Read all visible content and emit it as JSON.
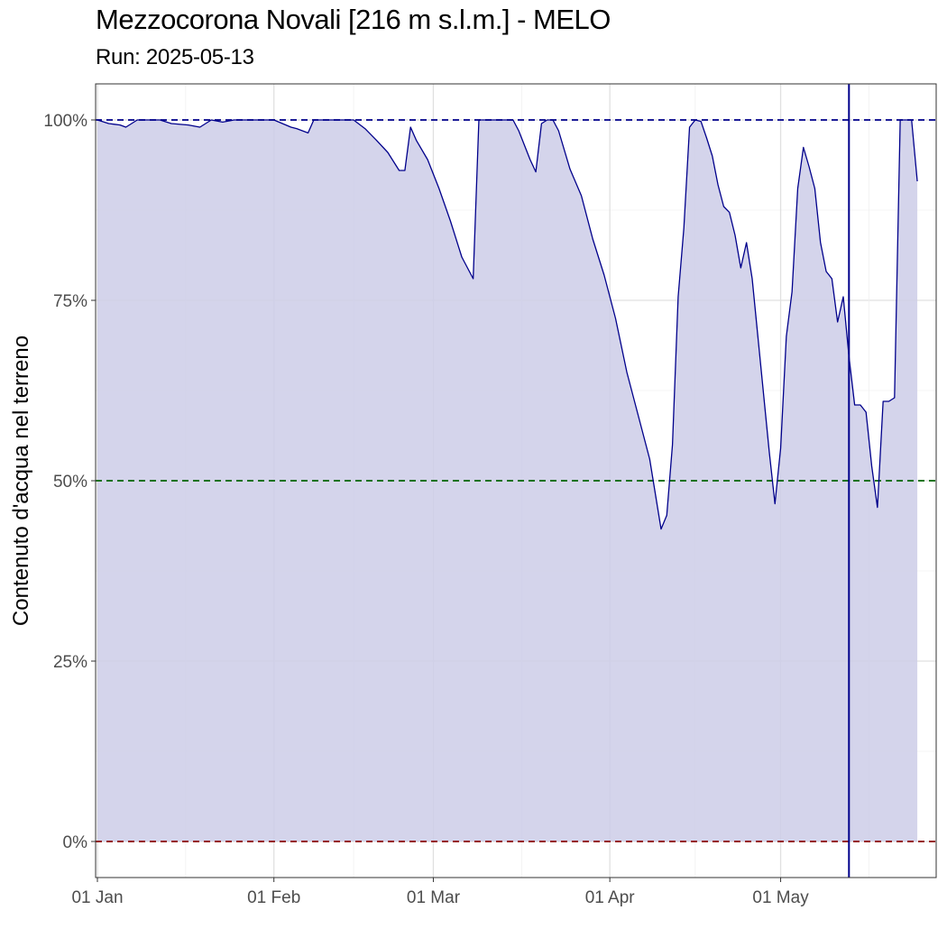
{
  "chart_data": {
    "type": "area",
    "title": "Mezzocorona Novali [216 m s.l.m.] - MELO",
    "subtitle": "Run: 2025-05-13",
    "xlabel": "",
    "ylabel": "Contenuto d'acqua nel terreno",
    "xlim": [
      "2025-01-01",
      "2025-05-28"
    ],
    "ylim": [
      -0.05,
      1.05
    ],
    "x_ticks": [
      {
        "date": "2025-01-01",
        "label": "01 Jan"
      },
      {
        "date": "2025-02-01",
        "label": "01 Feb"
      },
      {
        "date": "2025-03-01",
        "label": "01 Mar"
      },
      {
        "date": "2025-04-01",
        "label": "01 Apr"
      },
      {
        "date": "2025-05-01",
        "label": "01 May"
      }
    ],
    "y_ticks": [
      {
        "value": 0,
        "label": "0%"
      },
      {
        "value": 0.25,
        "label": "25%"
      },
      {
        "value": 0.5,
        "label": "50%"
      },
      {
        "value": 0.75,
        "label": "75%"
      },
      {
        "value": 1,
        "label": "100%"
      }
    ],
    "reference_lines": [
      {
        "value": 1.0,
        "color": "#00008b",
        "style": "dashed"
      },
      {
        "value": 0.5,
        "color": "#006400",
        "style": "dashed"
      },
      {
        "value": 0.0,
        "color": "#8b0000",
        "style": "dashed"
      }
    ],
    "run_date_line": {
      "date": "2025-05-13",
      "color": "#00008b"
    },
    "grid": true,
    "colors": {
      "line": "#00008b",
      "fill": "#cccce8"
    },
    "series": [
      {
        "points": [
          [
            "2025-01-01",
            1.0
          ],
          [
            "2025-01-03",
            0.995
          ],
          [
            "2025-01-05",
            0.993
          ],
          [
            "2025-01-06",
            0.99
          ],
          [
            "2025-01-08",
            1.0
          ],
          [
            "2025-01-12",
            1.0
          ],
          [
            "2025-01-14",
            0.995
          ],
          [
            "2025-01-17",
            0.993
          ],
          [
            "2025-01-19",
            0.99
          ],
          [
            "2025-01-21",
            1.0
          ],
          [
            "2025-01-23",
            0.997
          ],
          [
            "2025-01-25",
            1.0
          ],
          [
            "2025-02-01",
            1.0
          ],
          [
            "2025-02:04",
            0.99
          ],
          [
            "2025-02-05",
            0.988
          ],
          [
            "2025-02-07",
            0.982
          ],
          [
            "2025-02-08",
            1.0
          ],
          [
            "2025-02-15",
            1.0
          ],
          [
            "2025-02-17",
            0.988
          ],
          [
            "2025-02-19",
            0.972
          ],
          [
            "2025-02-21",
            0.955
          ],
          [
            "2025-02-23",
            0.93
          ],
          [
            "2025-02-24",
            0.93
          ],
          [
            "2025-02-25",
            0.99
          ],
          [
            "2025-02-26",
            0.972
          ],
          [
            "2025-02-28",
            0.945
          ],
          [
            "2025-03-02",
            0.905
          ],
          [
            "2025-03-04",
            0.86
          ],
          [
            "2025-03-06",
            0.81
          ],
          [
            "2025-03-08",
            0.78
          ],
          [
            "2025-03-09",
            1.0
          ],
          [
            "2025-03-15",
            1.0
          ],
          [
            "2025-03-16",
            0.985
          ],
          [
            "2025-03-18",
            0.945
          ],
          [
            "2025-03-19",
            0.928
          ],
          [
            "2025-03-20",
            0.995
          ],
          [
            "2025-03-21",
            1.0
          ],
          [
            "2025-03-22",
            1.0
          ],
          [
            "2025-03-23",
            0.985
          ],
          [
            "2025-03-25",
            0.932
          ],
          [
            "2025-03-27",
            0.895
          ],
          [
            "2025-03-29",
            0.835
          ],
          [
            "2025-03-31",
            0.785
          ],
          [
            "2025-04-02",
            0.725
          ],
          [
            "2025-04-04",
            0.65
          ],
          [
            "2025-04-06",
            0.59
          ],
          [
            "2025-04-08",
            0.53
          ],
          [
            "2025-04-10",
            0.433
          ],
          [
            "2025-04-11",
            0.452
          ],
          [
            "2025-04-12",
            0.55
          ],
          [
            "2025-04-13",
            0.755
          ],
          [
            "2025-04-14",
            0.85
          ],
          [
            "2025-04-15",
            0.99
          ],
          [
            "2025-04-16",
            1.0
          ],
          [
            "2025-04-17",
            0.998
          ],
          [
            "2025-04-18",
            0.975
          ],
          [
            "2025-04-19",
            0.95
          ],
          [
            "2025-04-20",
            0.91
          ],
          [
            "2025-04-21",
            0.88
          ],
          [
            "2025-04-22",
            0.872
          ],
          [
            "2025-04-23",
            0.84
          ],
          [
            "2025-04-24",
            0.795
          ],
          [
            "2025-04-25",
            0.83
          ],
          [
            "2025-04-26",
            0.78
          ],
          [
            "2025-04-27",
            0.7
          ],
          [
            "2025-04-28",
            0.62
          ],
          [
            "2025-04-29",
            0.54
          ],
          [
            "2025-04-30",
            0.468
          ],
          [
            "2025-05-01",
            0.545
          ],
          [
            "2025-05-02",
            0.7
          ],
          [
            "2025-05-03",
            0.762
          ],
          [
            "2025-05-04",
            0.905
          ],
          [
            "2025-05-05",
            0.962
          ],
          [
            "2025-05-06",
            0.935
          ],
          [
            "2025-05-07",
            0.905
          ],
          [
            "2025-05-08",
            0.83
          ],
          [
            "2025-05-09",
            0.79
          ],
          [
            "2025-05-10",
            0.78
          ],
          [
            "2025-05-11",
            0.72
          ],
          [
            "2025-05-12",
            0.755
          ],
          [
            "2025-05-13",
            0.672
          ],
          [
            "2025-05-14",
            0.605
          ],
          [
            "2025-05-15",
            0.605
          ],
          [
            "2025-05-16",
            0.595
          ],
          [
            "2025-05-17",
            0.52
          ],
          [
            "2025-05-18",
            0.463
          ],
          [
            "2025-05-19",
            0.61
          ],
          [
            "2025-05-20",
            0.61
          ],
          [
            "2025-05-21",
            0.615
          ],
          [
            "2025-05-22",
            1.0
          ],
          [
            "2025-05-24",
            1.0
          ],
          [
            "2025-05-25",
            0.915
          ]
        ]
      }
    ]
  }
}
